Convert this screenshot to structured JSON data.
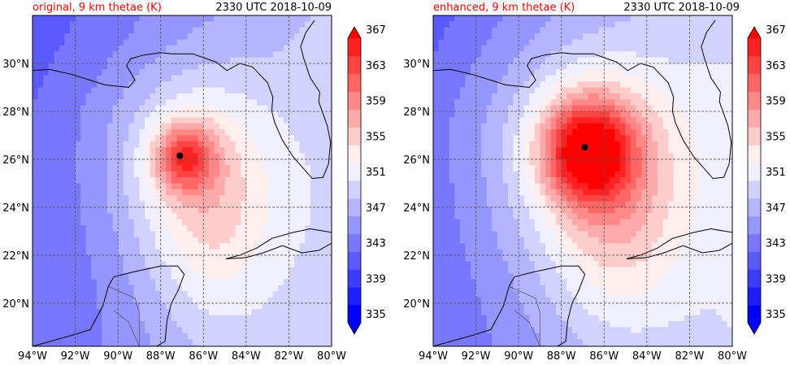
{
  "figure": {
    "panels": [
      {
        "id": "original",
        "title_left": "original, 9 km thetae (K)",
        "title_right": "2330 UTC 2018-10-09",
        "center_marker": {
          "lon": -87.1,
          "lat": 26.15
        },
        "warm_core": {
          "lon": -86.9,
          "lat": 26.1,
          "peak_K": 361,
          "spread": 1.0
        }
      },
      {
        "id": "enhanced",
        "title_left": "enhanced, 9 km thetae (K)",
        "title_right": "2330 UTC 2018-10-09",
        "center_marker": {
          "lon": -86.9,
          "lat": 26.5
        },
        "warm_core": {
          "lon": -86.8,
          "lat": 26.4,
          "peak_K": 367,
          "spread": 1.6
        }
      }
    ],
    "lon_ticks": [
      "94°W",
      "92°W",
      "90°W",
      "88°W",
      "86°W",
      "84°W",
      "82°W",
      "80°W"
    ],
    "lat_ticks": [
      "20°N",
      "22°N",
      "24°N",
      "26°N",
      "28°N",
      "30°N"
    ],
    "colorbar_ticks": [
      "335",
      "339",
      "343",
      "347",
      "351",
      "355",
      "359",
      "363",
      "367"
    ],
    "colors": {
      "cold": "#0000ff",
      "neutral": "#ffffff",
      "warm": "#ff0000",
      "title_left": "#ff0000",
      "coastline": "#000000",
      "gridline": "#555555"
    }
  },
  "map_data": {
    "extent": {
      "lon": [
        -94,
        -80
      ],
      "lat": [
        18.2,
        32
      ]
    },
    "grid_lons": [
      -94,
      -92,
      -90,
      -88,
      -86,
      -84,
      -82,
      -80
    ],
    "grid_lats": [
      20,
      22,
      24,
      26,
      28,
      30
    ],
    "variable": "equivalent potential temperature at 9 km",
    "units": "K",
    "contour_levels": [
      335,
      337,
      339,
      341,
      343,
      345,
      347,
      349,
      351,
      353,
      355,
      357,
      359,
      361,
      363,
      365,
      367
    ]
  }
}
